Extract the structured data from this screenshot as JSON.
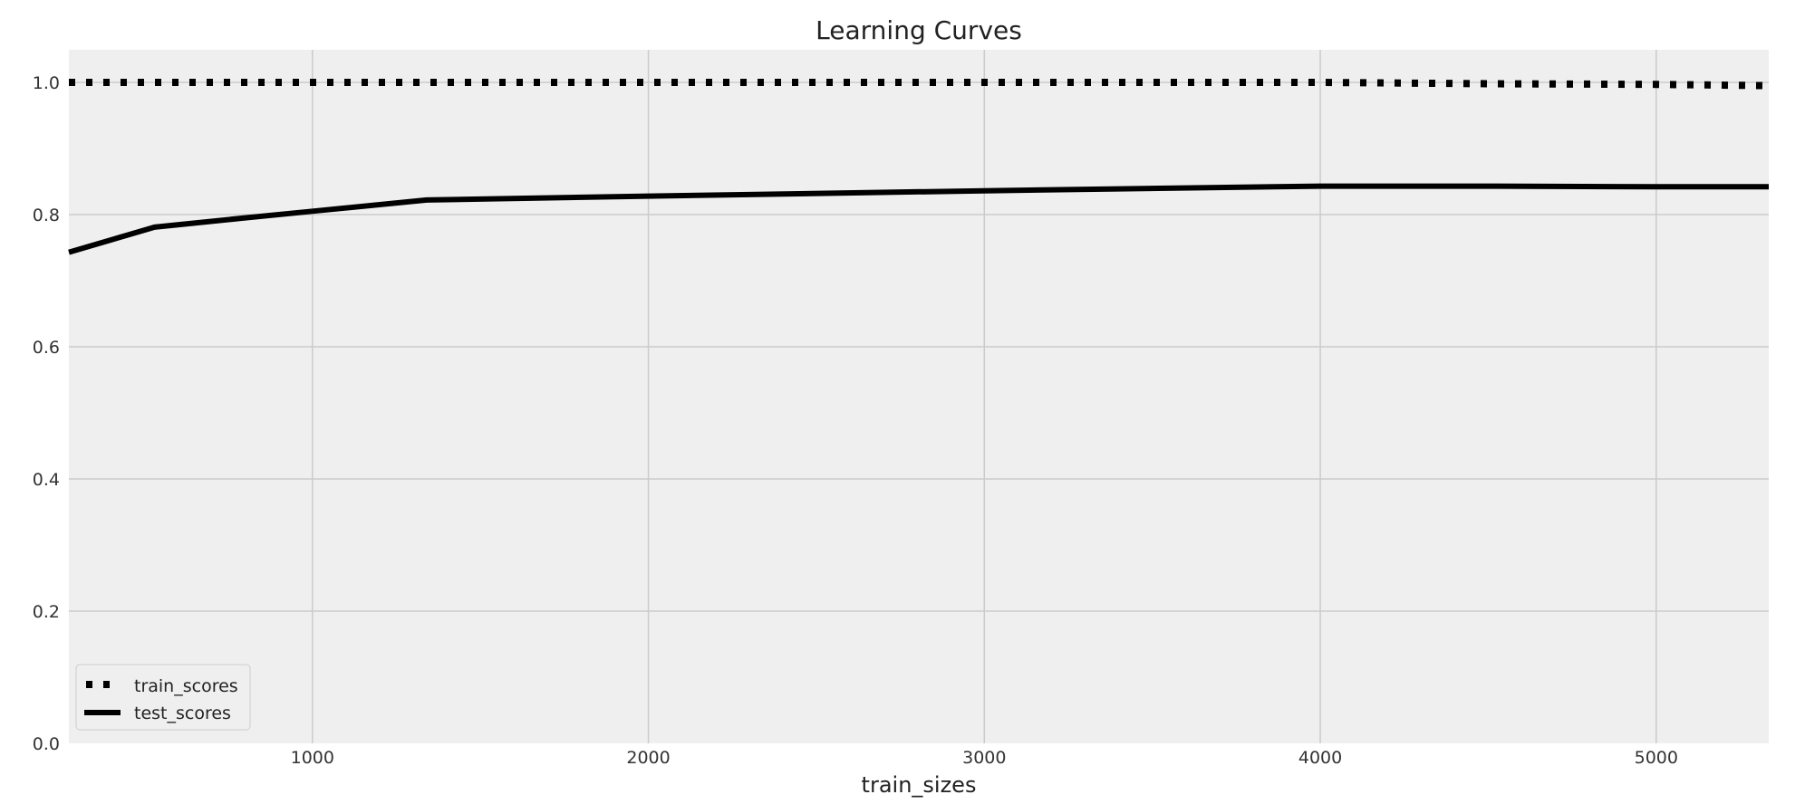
{
  "chart_data": {
    "type": "line",
    "title": "Learning Curves",
    "xlabel": "train_sizes",
    "ylabel": "",
    "xlim": [
      275,
      5335
    ],
    "ylim": [
      0.0,
      1.05
    ],
    "xticks": [
      1000,
      2000,
      3000,
      4000,
      5000
    ],
    "xtick_labels": [
      "1000",
      "2000",
      "3000",
      "4000",
      "5000"
    ],
    "yticks": [
      0.0,
      0.2,
      0.4,
      0.6,
      0.8,
      1.0
    ],
    "ytick_labels": [
      "0.0",
      "0.2",
      "0.4",
      "0.6",
      "0.8",
      "1.0"
    ],
    "grid": true,
    "legend": {
      "placement": "lower-left"
    },
    "colors": {
      "background": "#efefef",
      "grid": "#cbcbcb",
      "line": "#000000"
    },
    "series": [
      {
        "name": "train_scores",
        "style": "dotted",
        "x": [
          275,
          530,
          1340,
          2000,
          3000,
          4000,
          4500,
          5000,
          5335
        ],
        "y": [
          1.0,
          1.0,
          1.0,
          1.0,
          1.0,
          1.0,
          0.998,
          0.997,
          0.995
        ]
      },
      {
        "name": "test_scores",
        "style": "solid",
        "x": [
          275,
          530,
          800,
          1000,
          1340,
          2000,
          3000,
          4000,
          4500,
          5000,
          5335
        ],
        "y": [
          0.743,
          0.781,
          0.795,
          0.805,
          0.822,
          0.828,
          0.836,
          0.843,
          0.843,
          0.842,
          0.842
        ]
      }
    ]
  }
}
